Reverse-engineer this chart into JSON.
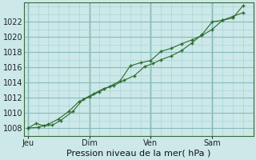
{
  "background_color": "#cce8e8",
  "plot_bg_color": "#cce8e8",
  "line_color": "#2d6b2d",
  "marker_color": "#2d6b2d",
  "grid_minor_color": "#aad4d4",
  "grid_major_color": "#88bbbb",
  "xlabel": "Pression niveau de la mer( hPa )",
  "ylim": [
    1007.0,
    1024.5
  ],
  "yticks": [
    1008,
    1010,
    1012,
    1014,
    1016,
    1018,
    1020,
    1022
  ],
  "xtick_labels": [
    "Jeu",
    "Dim",
    "Ven",
    "Sam"
  ],
  "xtick_positions": [
    0,
    3,
    6,
    9
  ],
  "xlim": [
    -0.2,
    11.0
  ],
  "line1_x": [
    0.0,
    0.4,
    0.8,
    1.2,
    1.6,
    2.2,
    2.7,
    3.2,
    3.7,
    4.2,
    4.7,
    5.2,
    5.7,
    6.1,
    6.5,
    7.0,
    7.5,
    8.0,
    8.5,
    9.0,
    9.5,
    10.0,
    10.5
  ],
  "line1_y": [
    1008.0,
    1008.6,
    1008.3,
    1008.4,
    1009.0,
    1010.2,
    1011.8,
    1012.5,
    1013.2,
    1013.6,
    1014.3,
    1014.9,
    1016.1,
    1016.5,
    1017.0,
    1017.5,
    1018.2,
    1019.2,
    1020.3,
    1022.0,
    1022.2,
    1022.5,
    1024.1
  ],
  "line2_x": [
    0.0,
    0.5,
    1.0,
    1.5,
    2.0,
    2.5,
    3.0,
    3.5,
    4.0,
    4.5,
    5.0,
    5.5,
    6.0,
    6.5,
    7.0,
    7.5,
    8.0,
    8.5,
    9.0,
    9.5,
    10.0,
    10.5
  ],
  "line2_y": [
    1008.0,
    1008.1,
    1008.5,
    1009.2,
    1010.2,
    1011.5,
    1012.1,
    1012.8,
    1013.5,
    1014.2,
    1016.2,
    1016.6,
    1016.9,
    1018.1,
    1018.5,
    1019.1,
    1019.6,
    1020.2,
    1021.0,
    1022.2,
    1022.7,
    1023.2
  ],
  "vline_positions": [
    0,
    3,
    6,
    9
  ],
  "font_size_xlabel": 8,
  "font_size_tick": 7
}
